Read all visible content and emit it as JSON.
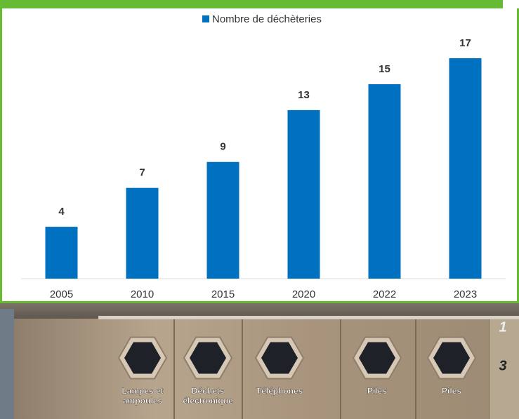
{
  "chart_data": {
    "type": "bar",
    "legend": "Nombre de déchèteries",
    "categories": [
      "2005",
      "2010",
      "2015",
      "2020",
      "2022",
      "2023"
    ],
    "values": [
      4,
      7,
      9,
      13,
      15,
      17
    ],
    "color": "#0070c0",
    "legend_position": "top"
  },
  "photo": {
    "bins": [
      {
        "lines": [
          "Lampes et",
          "ampoules"
        ]
      },
      {
        "lines": [
          "Déchets",
          "électronique"
        ]
      },
      {
        "lines": [
          "Téléphones"
        ]
      },
      {
        "lines": [
          "Piles"
        ]
      },
      {
        "lines": [
          "Piles"
        ]
      }
    ],
    "shelf_numbers": [
      "1",
      "3"
    ]
  }
}
